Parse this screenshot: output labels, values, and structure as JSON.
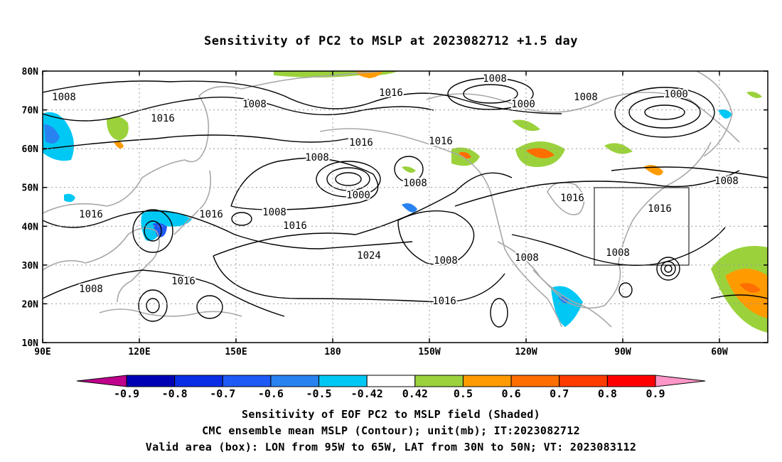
{
  "title": "Sensitivity of PC2 to MSLP at 2023082712 +1.5 day",
  "map": {
    "lat_labels": [
      "80N",
      "70N",
      "60N",
      "50N",
      "40N",
      "30N",
      "20N",
      "10N"
    ],
    "lon_labels": [
      "90E",
      "120E",
      "150E",
      "180",
      "150W",
      "120W",
      "90W",
      "60W"
    ],
    "contour_labels": [
      {
        "text": "1008"
      },
      {
        "text": "1008"
      },
      {
        "text": "1016"
      },
      {
        "text": "1016"
      },
      {
        "text": "1008"
      },
      {
        "text": "1000"
      },
      {
        "text": "1008"
      },
      {
        "text": "1000"
      },
      {
        "text": "1016"
      },
      {
        "text": "1016"
      },
      {
        "text": "1008"
      },
      {
        "text": "1000"
      },
      {
        "text": "1008"
      },
      {
        "text": "1016"
      },
      {
        "text": "1016"
      },
      {
        "text": "1008"
      },
      {
        "text": "1016"
      },
      {
        "text": "1016"
      },
      {
        "text": "1016"
      },
      {
        "text": "1024"
      },
      {
        "text": "1008"
      },
      {
        "text": "1008"
      },
      {
        "text": "1016"
      },
      {
        "text": "1008"
      },
      {
        "text": "1016"
      },
      {
        "text": "1008"
      },
      {
        "text": "1008"
      }
    ],
    "box": {
      "lon_from": "95W",
      "lon_to": "65W",
      "lat_from": "30N",
      "lat_to": "50N"
    }
  },
  "colorbar": {
    "labels": [
      "-0.9",
      "-0.8",
      "-0.7",
      "-0.6",
      "-0.5",
      "-0.42",
      "0.42",
      "0.5",
      "0.6",
      "0.7",
      "0.8",
      "0.9"
    ],
    "colors": [
      "#c0008c",
      "#0000b4",
      "#0a2ee6",
      "#1e5af5",
      "#2882f0",
      "#00c8f5",
      "#ffffff",
      "#9bd23c",
      "#ff9b00",
      "#ff6e00",
      "#ff3c00",
      "#ff0000",
      "#ff96c8"
    ]
  },
  "captions": [
    "Sensitivity of EOF PC2 to MSLP field (Shaded)",
    "CMC ensemble mean MSLP (Contour); unit(mb); IT:2023082712",
    "Valid area (box): LON from 95W to 65W, LAT from 30N to 50N; VT: 2023083112"
  ]
}
